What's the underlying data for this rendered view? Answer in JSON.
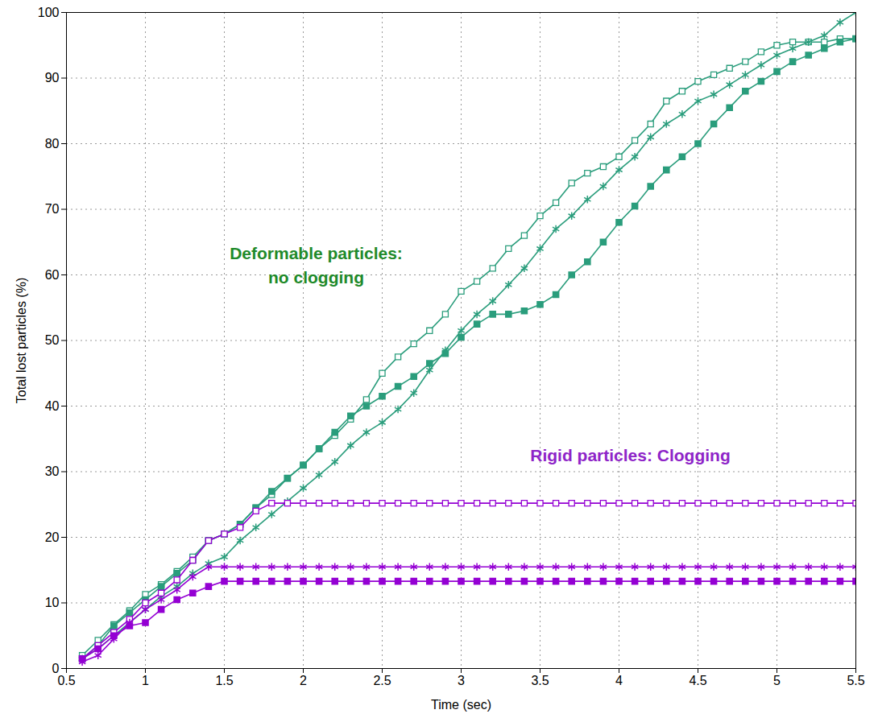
{
  "chart_data": {
    "type": "line",
    "x_label": "Time (sec)",
    "y_label": "Total lost particles (%)",
    "x": [
      0.6,
      0.7,
      0.8,
      0.9,
      1.0,
      1.1,
      1.2,
      1.3,
      1.4,
      1.5,
      1.6,
      1.7,
      1.8,
      1.9,
      2.0,
      2.1,
      2.2,
      2.3,
      2.4,
      2.5,
      2.6,
      2.7,
      2.8,
      2.9,
      3.0,
      3.1,
      3.2,
      3.3,
      3.4,
      3.5,
      3.6,
      3.7,
      3.8,
      3.9,
      4.0,
      4.1,
      4.2,
      4.3,
      4.4,
      4.5,
      4.6,
      4.7,
      4.8,
      4.9,
      5.0,
      5.1,
      5.2,
      5.3,
      5.4,
      5.5
    ],
    "series": [
      {
        "color": "#2a9d7c",
        "marker": "open_square",
        "values": [
          2,
          4.3,
          6.7,
          8.8,
          11.3,
          12.8,
          14.8,
          17,
          19.5,
          20.5,
          22,
          24.5,
          26.5,
          29,
          31,
          33.5,
          35.5,
          38,
          41,
          45,
          47.5,
          49.5,
          51.5,
          54,
          57.5,
          59,
          61,
          64,
          66,
          69,
          71,
          74,
          75.5,
          76.5,
          78,
          80.5,
          83,
          86.5,
          88,
          89.5,
          90.5,
          91.5,
          92.5,
          94,
          95,
          95.5,
          95.5,
          95.5,
          96,
          96
        ]
      },
      {
        "color": "#2a9d7c",
        "marker": "star",
        "values": [
          1.5,
          3,
          5,
          7,
          9,
          11,
          12.5,
          14.5,
          16,
          17,
          19.5,
          21.5,
          23.5,
          25.5,
          27.5,
          29.5,
          31.5,
          34,
          36,
          37.5,
          39.5,
          42,
          45.5,
          48.5,
          51.5,
          54,
          56,
          58.5,
          61,
          64,
          67,
          69,
          71.5,
          73.5,
          76,
          78,
          81,
          83,
          84.5,
          86.5,
          87.5,
          89,
          90.5,
          92,
          93.5,
          94.5,
          95.5,
          96.5,
          98.5,
          100
        ]
      },
      {
        "color": "#2a9d7c",
        "marker": "square",
        "values": [
          1.5,
          3.5,
          6.5,
          8.5,
          10.5,
          12.5,
          14.5,
          16.5,
          19.5,
          20.5,
          22,
          24.5,
          27,
          29,
          31,
          33.5,
          36,
          38.5,
          40,
          41.5,
          43,
          44.5,
          46.5,
          48,
          50.5,
          52.5,
          54,
          54,
          54.5,
          55.5,
          57,
          60,
          62,
          65,
          68,
          70.5,
          73.5,
          76,
          78,
          80,
          83,
          85.5,
          88,
          89.5,
          91,
          92.5,
          93.5,
          94.5,
          95.5,
          96
        ]
      },
      {
        "color": "#9400d3",
        "marker": "open_square",
        "values": [
          1.5,
          3.5,
          5.5,
          7.5,
          10,
          11.5,
          13.5,
          16.5,
          19.5,
          20.5,
          21.5,
          24,
          25.2,
          25.2,
          25.2,
          25.2,
          25.2,
          25.2,
          25.2,
          25.2,
          25.2,
          25.2,
          25.2,
          25.2,
          25.2,
          25.2,
          25.2,
          25.2,
          25.2,
          25.2,
          25.2,
          25.2,
          25.2,
          25.2,
          25.2,
          25.2,
          25.2,
          25.2,
          25.2,
          25.2,
          25.2,
          25.2,
          25.2,
          25.2,
          25.2,
          25.2,
          25.2,
          25.2,
          25.2,
          25.2
        ]
      },
      {
        "color": "#9400d3",
        "marker": "star",
        "values": [
          1,
          2,
          4.5,
          7,
          9,
          10.5,
          12,
          14,
          15.5,
          15.5,
          15.5,
          15.5,
          15.5,
          15.5,
          15.5,
          15.5,
          15.5,
          15.5,
          15.5,
          15.5,
          15.5,
          15.5,
          15.5,
          15.5,
          15.5,
          15.5,
          15.5,
          15.5,
          15.5,
          15.5,
          15.5,
          15.5,
          15.5,
          15.5,
          15.5,
          15.5,
          15.5,
          15.5,
          15.5,
          15.5,
          15.5,
          15.5,
          15.5,
          15.5,
          15.5,
          15.5,
          15.5,
          15.5,
          15.5,
          15.5
        ]
      },
      {
        "color": "#9400d3",
        "marker": "square",
        "values": [
          1.5,
          3,
          5,
          6.5,
          7,
          9,
          10.5,
          11.5,
          12.5,
          13.3,
          13.3,
          13.3,
          13.3,
          13.3,
          13.3,
          13.3,
          13.3,
          13.3,
          13.3,
          13.3,
          13.3,
          13.3,
          13.3,
          13.3,
          13.3,
          13.3,
          13.3,
          13.3,
          13.3,
          13.3,
          13.3,
          13.3,
          13.3,
          13.3,
          13.3,
          13.3,
          13.3,
          13.3,
          13.3,
          13.3,
          13.3,
          13.3,
          13.3,
          13.3,
          13.3,
          13.3,
          13.3,
          13.3,
          13.3,
          13.3
        ]
      }
    ],
    "xlim": [
      0.5,
      5.5
    ],
    "ylim": [
      0,
      100
    ],
    "xticks": [
      0.5,
      1,
      1.5,
      2,
      2.5,
      3,
      3.5,
      4,
      4.5,
      5,
      5.5
    ],
    "yticks": [
      0,
      10,
      20,
      30,
      40,
      50,
      60,
      70,
      80,
      90,
      100
    ],
    "grid": true,
    "annotations": [
      {
        "text": "Deformable particles:\nno clogging",
        "color": "#1f8a2a"
      },
      {
        "text": "Rigid particles: Clogging",
        "color": "#8e24c8"
      }
    ]
  }
}
